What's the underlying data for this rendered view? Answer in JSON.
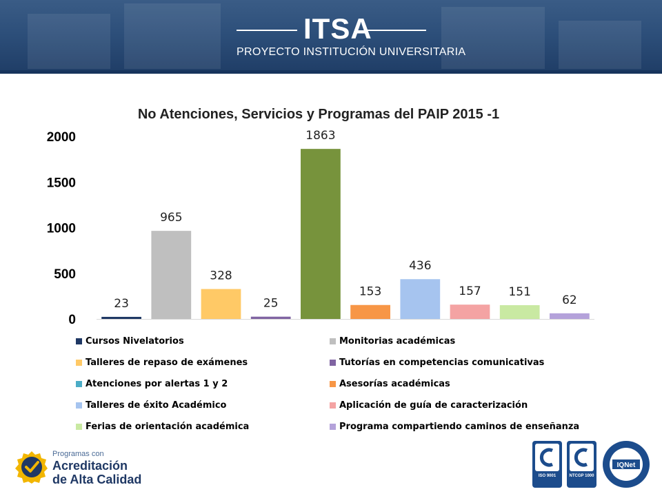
{
  "header": {
    "title": "ITSA",
    "subtitle": "PROYECTO INSTITUCIÓN UNIVERSITARIA"
  },
  "chart_data": {
    "type": "bar",
    "title": "No Atenciones, Servicios y Programas del PAIP 2015 -1",
    "xlabel": "",
    "ylabel": "",
    "ylim": [
      0,
      2000
    ],
    "yticks": [
      "0",
      "500",
      "1000",
      "1500",
      "2000"
    ],
    "grid": false,
    "legend_position": "bottom",
    "categories": [
      "Cursos Nivelatorios",
      "Monitorias académicas",
      "Talleres de repaso de exámenes",
      "Tutorías en competencias comunicativas",
      "Atenciones por alertas 1 y 2",
      "Asesorías académicas",
      "Talleres de éxito Académico",
      "Aplicación de guía de caracterización",
      "Ferias de orientación académica",
      "Programa compartiendo caminos de enseñanza"
    ],
    "values": [
      23,
      965,
      328,
      25,
      1863,
      153,
      436,
      157,
      151,
      62
    ],
    "data_labels": [
      "23",
      "965",
      "328",
      "25",
      "1863",
      "153",
      "436",
      "157",
      "151",
      "62"
    ],
    "colors": [
      "#1f3864",
      "#bfbfbf",
      "#ffc966",
      "#8064a2",
      "#77933c",
      "#f79646",
      "#a6c4ef",
      "#f4a3a3",
      "#c9e9a2",
      "#b4a2da"
    ],
    "legend_colors": [
      "#1f3864",
      "#bfbfbf",
      "#ffc966",
      "#8064a2",
      "#4bacc6",
      "#f79646",
      "#a6c4ef",
      "#f4a3a3",
      "#c9e9a2",
      "#b4a2da"
    ]
  },
  "footer": {
    "accreditation": {
      "line1": "Programas con",
      "line2": "Acreditación",
      "line3": "de Alta Calidad",
      "badge_icon": "checkmark-badge-icon",
      "accent": "#f2b600"
    },
    "certifications": [
      {
        "icon": "icontec-iso9001-icon",
        "label": "ISO 9001"
      },
      {
        "icon": "icontec-ntcgp1000-icon",
        "label": "NTCGP 1000"
      },
      {
        "icon": "iqnet-certified-icon",
        "label": "IQNet"
      }
    ]
  }
}
